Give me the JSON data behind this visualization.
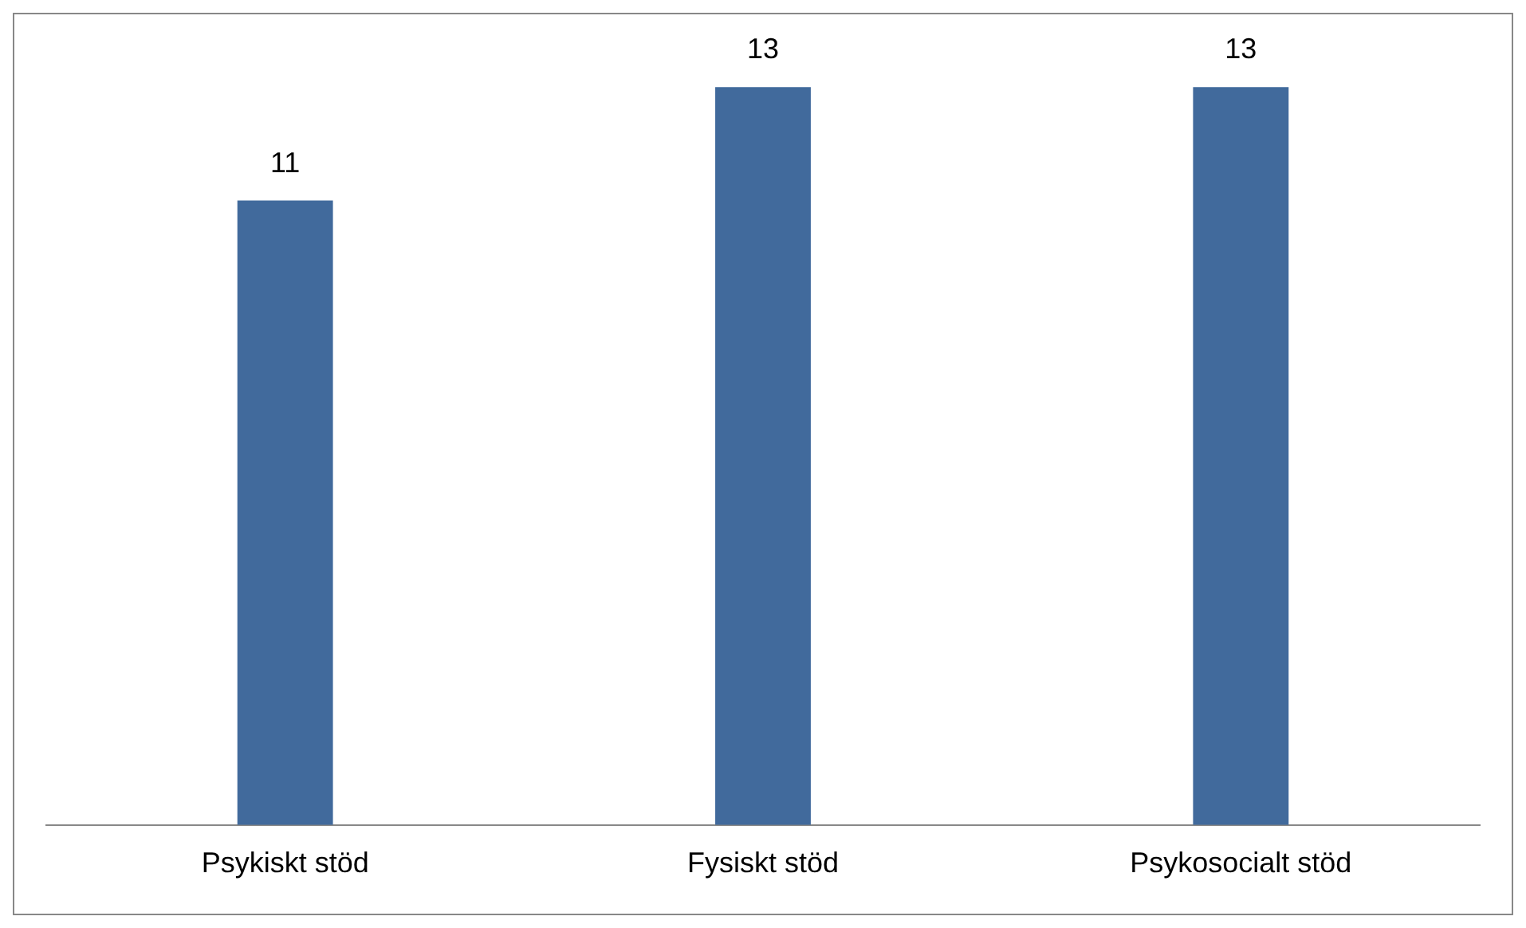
{
  "chart_data": {
    "type": "bar",
    "categories": [
      "Psykiskt stöd",
      "Fysiskt stöd",
      "Psykosocialt stöd"
    ],
    "values": [
      11,
      13,
      13
    ],
    "color": "#416a9c",
    "data_labels": true,
    "grid": false,
    "legend": false
  }
}
